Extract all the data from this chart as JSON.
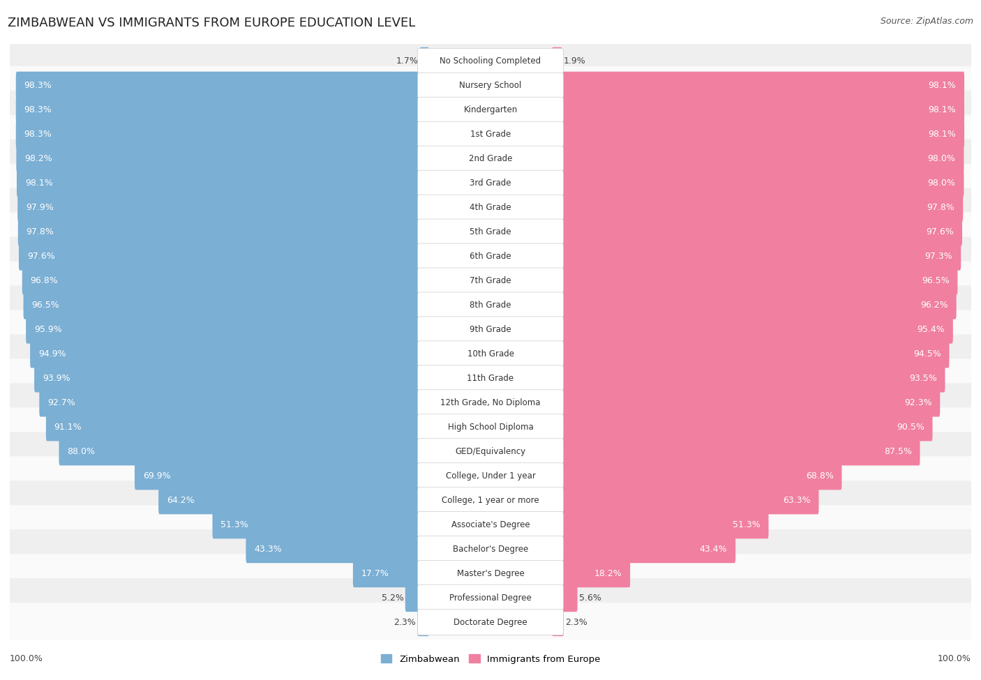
{
  "title": "ZIMBABWEAN VS IMMIGRANTS FROM EUROPE EDUCATION LEVEL",
  "source": "Source: ZipAtlas.com",
  "categories": [
    "No Schooling Completed",
    "Nursery School",
    "Kindergarten",
    "1st Grade",
    "2nd Grade",
    "3rd Grade",
    "4th Grade",
    "5th Grade",
    "6th Grade",
    "7th Grade",
    "8th Grade",
    "9th Grade",
    "10th Grade",
    "11th Grade",
    "12th Grade, No Diploma",
    "High School Diploma",
    "GED/Equivalency",
    "College, Under 1 year",
    "College, 1 year or more",
    "Associate's Degree",
    "Bachelor's Degree",
    "Master's Degree",
    "Professional Degree",
    "Doctorate Degree"
  ],
  "zimbabwean": [
    1.7,
    98.3,
    98.3,
    98.3,
    98.2,
    98.1,
    97.9,
    97.8,
    97.6,
    96.8,
    96.5,
    95.9,
    94.9,
    93.9,
    92.7,
    91.1,
    88.0,
    69.9,
    64.2,
    51.3,
    43.3,
    17.7,
    5.2,
    2.3
  ],
  "europe": [
    1.9,
    98.1,
    98.1,
    98.1,
    98.0,
    98.0,
    97.8,
    97.6,
    97.3,
    96.5,
    96.2,
    95.4,
    94.5,
    93.5,
    92.3,
    90.5,
    87.5,
    68.8,
    63.3,
    51.3,
    43.4,
    18.2,
    5.6,
    2.3
  ],
  "blue_color": "#7bafd4",
  "pink_color": "#f07fa0",
  "row_bg_even": "#efefef",
  "row_bg_odd": "#fafafa",
  "legend_blue": "Zimbabwean",
  "legend_pink": "Immigrants from Europe",
  "label_fontsize": 9.0,
  "cat_fontsize": 8.5,
  "title_fontsize": 13,
  "source_fontsize": 9
}
